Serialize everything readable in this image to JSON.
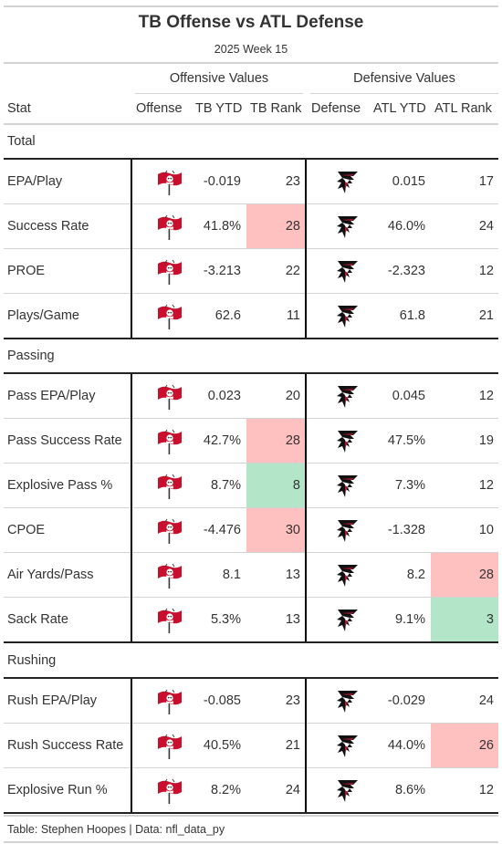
{
  "title": "TB Offense vs ATL Defense",
  "subtitle": "2025 Week 15",
  "spanners": {
    "offense": "Offensive Values",
    "defense": "Defensive Values"
  },
  "columns": {
    "stat": "Stat",
    "offense": "Offense",
    "tb_ytd": "TB YTD",
    "tb_rank": "TB Rank",
    "defense": "Defense",
    "atl_ytd": "ATL YTD",
    "atl_rank": "ATL Rank"
  },
  "highlight_colors": {
    "bad": "#ffc0c0",
    "good": "#b3e6c8"
  },
  "team_colors": {
    "tb_red": "#c8102e",
    "tb_pewter": "#3d3935",
    "atl_black": "#111111",
    "atl_red": "#a71930"
  },
  "groups": [
    {
      "label": "Total",
      "rows": [
        {
          "stat": "EPA/Play",
          "offense_logo": "buccaneers-flag-icon",
          "tb_ytd": "-0.019",
          "tb_rank": "23",
          "tb_hl": "",
          "defense_logo": "falcons-logo-icon",
          "atl_ytd": "0.015",
          "atl_rank": "17",
          "atl_hl": ""
        },
        {
          "stat": "Success Rate",
          "offense_logo": "buccaneers-flag-icon",
          "tb_ytd": "41.8%",
          "tb_rank": "28",
          "tb_hl": "bad",
          "defense_logo": "falcons-logo-icon",
          "atl_ytd": "46.0%",
          "atl_rank": "24",
          "atl_hl": ""
        },
        {
          "stat": "PROE",
          "offense_logo": "buccaneers-flag-icon",
          "tb_ytd": "-3.213",
          "tb_rank": "22",
          "tb_hl": "",
          "defense_logo": "falcons-logo-icon",
          "atl_ytd": "-2.323",
          "atl_rank": "12",
          "atl_hl": ""
        },
        {
          "stat": "Plays/Game",
          "offense_logo": "buccaneers-flag-icon",
          "tb_ytd": "62.6",
          "tb_rank": "11",
          "tb_hl": "",
          "defense_logo": "falcons-logo-icon",
          "atl_ytd": "61.8",
          "atl_rank": "21",
          "atl_hl": ""
        }
      ]
    },
    {
      "label": "Passing",
      "rows": [
        {
          "stat": "Pass EPA/Play",
          "offense_logo": "buccaneers-flag-icon",
          "tb_ytd": "0.023",
          "tb_rank": "20",
          "tb_hl": "",
          "defense_logo": "falcons-logo-icon",
          "atl_ytd": "0.045",
          "atl_rank": "12",
          "atl_hl": ""
        },
        {
          "stat": "Pass Success Rate",
          "offense_logo": "buccaneers-flag-icon",
          "tb_ytd": "42.7%",
          "tb_rank": "28",
          "tb_hl": "bad",
          "defense_logo": "falcons-logo-icon",
          "atl_ytd": "47.5%",
          "atl_rank": "19",
          "atl_hl": ""
        },
        {
          "stat": "Explosive Pass %",
          "offense_logo": "buccaneers-flag-icon",
          "tb_ytd": "8.7%",
          "tb_rank": "8",
          "tb_hl": "good",
          "defense_logo": "falcons-logo-icon",
          "atl_ytd": "7.3%",
          "atl_rank": "12",
          "atl_hl": ""
        },
        {
          "stat": "CPOE",
          "offense_logo": "buccaneers-flag-icon",
          "tb_ytd": "-4.476",
          "tb_rank": "30",
          "tb_hl": "bad",
          "defense_logo": "falcons-logo-icon",
          "atl_ytd": "-1.328",
          "atl_rank": "10",
          "atl_hl": ""
        },
        {
          "stat": "Air Yards/Pass",
          "offense_logo": "buccaneers-flag-icon",
          "tb_ytd": "8.1",
          "tb_rank": "13",
          "tb_hl": "",
          "defense_logo": "falcons-logo-icon",
          "atl_ytd": "8.2",
          "atl_rank": "28",
          "atl_hl": "bad"
        },
        {
          "stat": "Sack Rate",
          "offense_logo": "buccaneers-flag-icon",
          "tb_ytd": "5.3%",
          "tb_rank": "13",
          "tb_hl": "",
          "defense_logo": "falcons-logo-icon",
          "atl_ytd": "9.1%",
          "atl_rank": "3",
          "atl_hl": "good"
        }
      ]
    },
    {
      "label": "Rushing",
      "rows": [
        {
          "stat": "Rush EPA/Play",
          "offense_logo": "buccaneers-flag-icon",
          "tb_ytd": "-0.085",
          "tb_rank": "23",
          "tb_hl": "",
          "defense_logo": "falcons-logo-icon",
          "atl_ytd": "-0.029",
          "atl_rank": "24",
          "atl_hl": ""
        },
        {
          "stat": "Rush Success Rate",
          "offense_logo": "buccaneers-flag-icon",
          "tb_ytd": "40.5%",
          "tb_rank": "21",
          "tb_hl": "",
          "defense_logo": "falcons-logo-icon",
          "atl_ytd": "44.0%",
          "atl_rank": "26",
          "atl_hl": "bad"
        },
        {
          "stat": "Explosive Run %",
          "offense_logo": "buccaneers-flag-icon",
          "tb_ytd": "8.2%",
          "tb_rank": "24",
          "tb_hl": "",
          "defense_logo": "falcons-logo-icon",
          "atl_ytd": "8.6%",
          "atl_rank": "12",
          "atl_hl": ""
        }
      ]
    }
  ],
  "footer": "Table: Stephen Hoopes | Data: nfl_data_py"
}
